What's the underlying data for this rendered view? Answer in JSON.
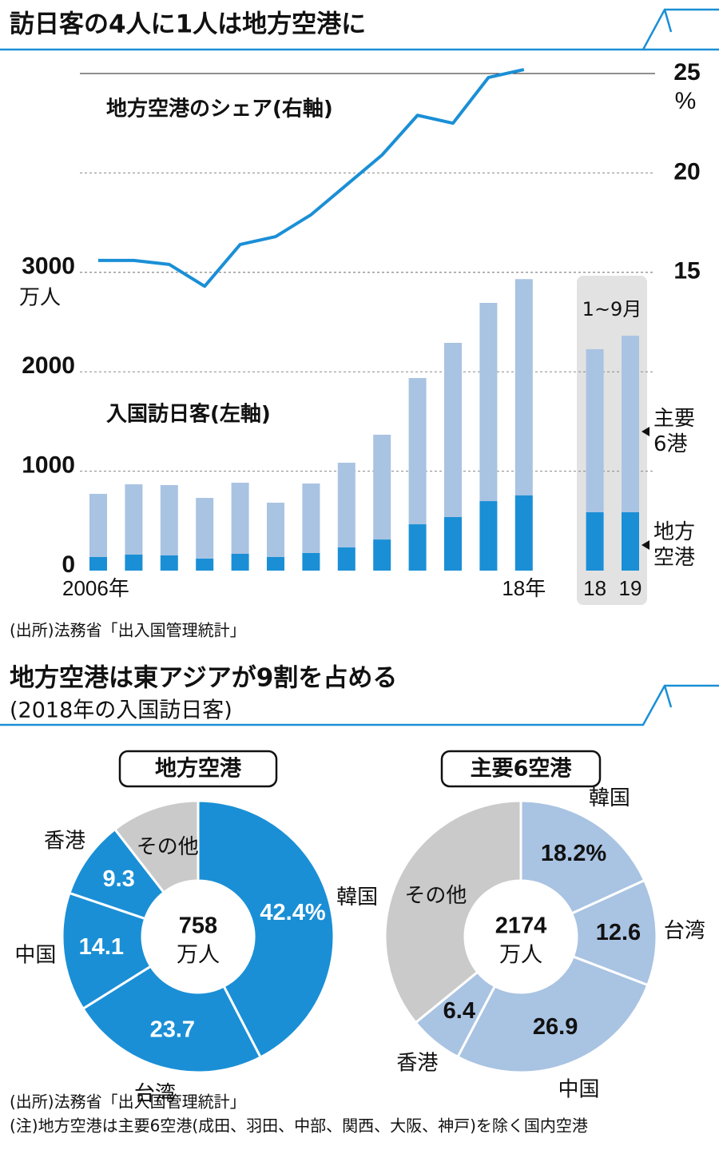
{
  "title": "訪日客の4人に1人は地方空港に",
  "chart_data": [
    {
      "type": "combo",
      "categories": [
        "2006年",
        null,
        null,
        null,
        null,
        null,
        null,
        null,
        null,
        null,
        null,
        null,
        "18年",
        "18",
        "19"
      ],
      "ylim": [
        0,
        5000
      ],
      "yticks": [
        0,
        1000,
        2000,
        3000
      ],
      "y_unit": "万人",
      "y2lim": [
        0,
        25
      ],
      "y2ticks": [
        15,
        20,
        25
      ],
      "y2_unit": "%",
      "grid": true,
      "series": [
        {
          "name": "地方空港",
          "type": "bar",
          "color": "#1a8fd6",
          "values": [
            137,
            161,
            153,
            121,
            169,
            137,
            177,
            233,
            313,
            466,
            539,
            699,
            758,
            587,
            587
          ]
        },
        {
          "name": "主要6港",
          "type": "bar",
          "color": "#a9c3e2",
          "values": [
            635,
            707,
            707,
            610,
            715,
            546,
            699,
            852,
            1054,
            1471,
            1752,
            1994,
            2174,
            1640,
            1776
          ]
        },
        {
          "name": "地方空港のシェア(右軸)",
          "type": "line",
          "axis": "y2",
          "color": "#1a8fd6",
          "values": [
            15.6,
            15.6,
            15.4,
            14.3,
            16.4,
            16.8,
            17.9,
            19.4,
            20.9,
            22.9,
            22.5,
            24.8,
            25.2,
            null,
            null
          ]
        }
      ],
      "annotations": [
        "入国訪日客(左軸)",
        "1~9月"
      ],
      "source": "(出所)法務省「出入国管理統計」"
    },
    {
      "type": "pie",
      "title": "地方空港は東アジアが9割を占める",
      "subtitle": "(2018年の入国訪日客)",
      "label": "地方空港",
      "total": 758,
      "total_unit": "万人",
      "categories": [
        "韓国",
        "台湾",
        "中国",
        "香港",
        "その他"
      ],
      "values": [
        42.4,
        23.7,
        14.1,
        9.3,
        10.5
      ],
      "value_labels": [
        "42.4%",
        "23.7",
        "14.1",
        "9.3",
        null
      ],
      "colors": [
        "#1a8fd6",
        "#1a8fd6",
        "#1a8fd6",
        "#1a8fd6",
        "#cacaca"
      ],
      "label_color": "#ffffff"
    },
    {
      "type": "pie",
      "label": "主要6空港",
      "total": 2174,
      "total_unit": "万人",
      "categories": [
        "韓国",
        "台湾",
        "中国",
        "香港",
        "その他"
      ],
      "values": [
        18.2,
        12.6,
        26.9,
        6.4,
        35.9
      ],
      "value_labels": [
        "18.2%",
        "12.6",
        "26.9",
        "6.4",
        null
      ],
      "colors": [
        "#a9c3e2",
        "#a9c3e2",
        "#a9c3e2",
        "#a9c3e2",
        "#cacaca"
      ],
      "label_color": "#111111"
    }
  ],
  "notes": [
    "(出所)法務省「出入国管理統計」",
    "(注)地方空港は主要6空港(成田、羽田、中部、関西、大阪、神戸)を除く国内空港"
  ]
}
